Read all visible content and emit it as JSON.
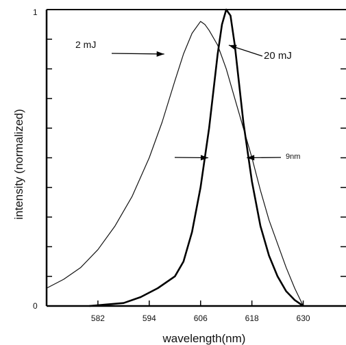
{
  "chart_data": {
    "type": "line",
    "title": "",
    "xlabel": "wavelength(nm)",
    "ylabel": "intensity (normalized)",
    "xlim": [
      570,
      640
    ],
    "ylim": [
      0,
      1
    ],
    "x_ticks": [
      582,
      594,
      606,
      618,
      630
    ],
    "y_tick_labels": [
      "0",
      "1"
    ],
    "grid": false,
    "series": [
      {
        "name": "2 mJ",
        "color": "#111111",
        "points": [
          [
            570,
            0.06
          ],
          [
            574,
            0.09
          ],
          [
            578,
            0.13
          ],
          [
            582,
            0.19
          ],
          [
            586,
            0.27
          ],
          [
            590,
            0.37
          ],
          [
            594,
            0.5
          ],
          [
            597,
            0.62
          ],
          [
            600,
            0.76
          ],
          [
            602,
            0.85
          ],
          [
            604,
            0.92
          ],
          [
            606,
            0.96
          ],
          [
            607,
            0.95
          ],
          [
            608,
            0.93
          ],
          [
            610,
            0.88
          ],
          [
            612,
            0.8
          ],
          [
            614,
            0.7
          ],
          [
            616,
            0.6
          ],
          [
            618,
            0.5
          ],
          [
            620,
            0.39
          ],
          [
            622,
            0.29
          ],
          [
            624,
            0.21
          ],
          [
            626,
            0.13
          ],
          [
            628,
            0.06
          ],
          [
            630,
            0.0
          ]
        ]
      },
      {
        "name": "20 mJ",
        "color": "#000000",
        "points": [
          [
            580,
            0.0
          ],
          [
            584,
            0.005
          ],
          [
            588,
            0.01
          ],
          [
            592,
            0.03
          ],
          [
            596,
            0.06
          ],
          [
            600,
            0.1
          ],
          [
            602,
            0.15
          ],
          [
            604,
            0.25
          ],
          [
            606,
            0.4
          ],
          [
            608,
            0.6
          ],
          [
            610,
            0.85
          ],
          [
            611,
            0.95
          ],
          [
            612,
            1.0
          ],
          [
            613,
            0.98
          ],
          [
            614,
            0.88
          ],
          [
            616,
            0.62
          ],
          [
            618,
            0.42
          ],
          [
            620,
            0.27
          ],
          [
            622,
            0.17
          ],
          [
            624,
            0.1
          ],
          [
            626,
            0.05
          ],
          [
            628,
            0.02
          ],
          [
            630,
            0.0
          ]
        ]
      }
    ],
    "annotations": [
      {
        "text": "2 mJ",
        "x": 597.5,
        "y": 0.85
      },
      {
        "text": "20 mJ",
        "x": 612.6,
        "y": 0.88
      },
      {
        "text": "9nm",
        "x_left": 607.8,
        "x_right": 616.8,
        "y": 0.5
      }
    ]
  }
}
